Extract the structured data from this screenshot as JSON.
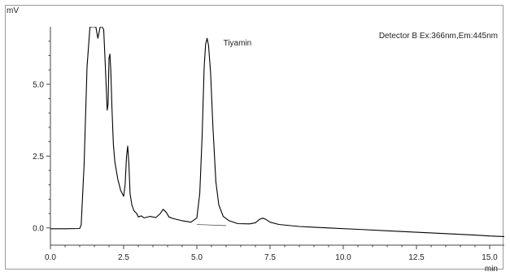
{
  "chart_data": {
    "type": "line",
    "ylabel": "mV",
    "xlabel": "min",
    "detector_label": "Detector B Ex:366nm,Em:445nm",
    "xlim": [
      0,
      15.5
    ],
    "ylim": [
      -0.6,
      7.0
    ],
    "xticks": [
      0.0,
      2.5,
      5.0,
      7.5,
      10.0,
      12.5,
      15.0
    ],
    "xtick_labels": [
      "0.0",
      "2.5",
      "5.0",
      "7.5",
      "10.0",
      "12.5",
      "15.0"
    ],
    "yticks": [
      0.0,
      2.5,
      5.0
    ],
    "ytick_labels": [
      "0.0",
      "2.5",
      "5.0"
    ],
    "annotations": [
      {
        "text": "Tiyamin",
        "x": 5.35,
        "y": 6.35
      }
    ],
    "peak_baseline": {
      "x": [
        5.0,
        6.0
      ],
      "y": [
        0.12,
        0.08
      ]
    },
    "series": [
      {
        "x": [
          0.0,
          0.5,
          1.0,
          1.05,
          1.15,
          1.25,
          1.35,
          1.45,
          1.55,
          1.62,
          1.7,
          1.76,
          1.82,
          1.88,
          1.94,
          1.97,
          2.0,
          2.03,
          2.06,
          2.1,
          2.15,
          2.2,
          2.3,
          2.4,
          2.5,
          2.55,
          2.6,
          2.64,
          2.68,
          2.72,
          2.78,
          2.85,
          2.95,
          3.0,
          3.1,
          3.2,
          3.4,
          3.6,
          3.75,
          3.85,
          3.95,
          4.05,
          4.2,
          4.5,
          4.8,
          5.0,
          5.1,
          5.18,
          5.25,
          5.3,
          5.35,
          5.4,
          5.47,
          5.55,
          5.65,
          5.75,
          5.9,
          6.1,
          6.4,
          6.8,
          7.0,
          7.15,
          7.25,
          7.35,
          7.5,
          7.8,
          8.5,
          9.5,
          10.5,
          11.5,
          12.5,
          13.5,
          14.5,
          15.0,
          15.5
        ],
        "y": [
          -0.03,
          -0.03,
          -0.02,
          0.1,
          2.2,
          5.6,
          7.0,
          7.0,
          7.0,
          6.6,
          7.0,
          7.0,
          6.9,
          5.5,
          4.1,
          4.3,
          5.9,
          6.05,
          5.5,
          4.2,
          2.9,
          2.3,
          1.7,
          1.3,
          1.1,
          1.5,
          2.5,
          2.85,
          2.2,
          1.2,
          0.8,
          0.6,
          0.5,
          0.38,
          0.42,
          0.35,
          0.4,
          0.36,
          0.5,
          0.65,
          0.55,
          0.38,
          0.32,
          0.25,
          0.2,
          0.35,
          1.2,
          3.2,
          5.6,
          6.4,
          6.6,
          6.35,
          5.4,
          3.5,
          1.6,
          0.8,
          0.4,
          0.25,
          0.15,
          0.14,
          0.18,
          0.3,
          0.34,
          0.3,
          0.2,
          0.12,
          0.05,
          0.0,
          -0.05,
          -0.1,
          -0.15,
          -0.2,
          -0.25,
          -0.28,
          -0.3
        ]
      }
    ]
  }
}
